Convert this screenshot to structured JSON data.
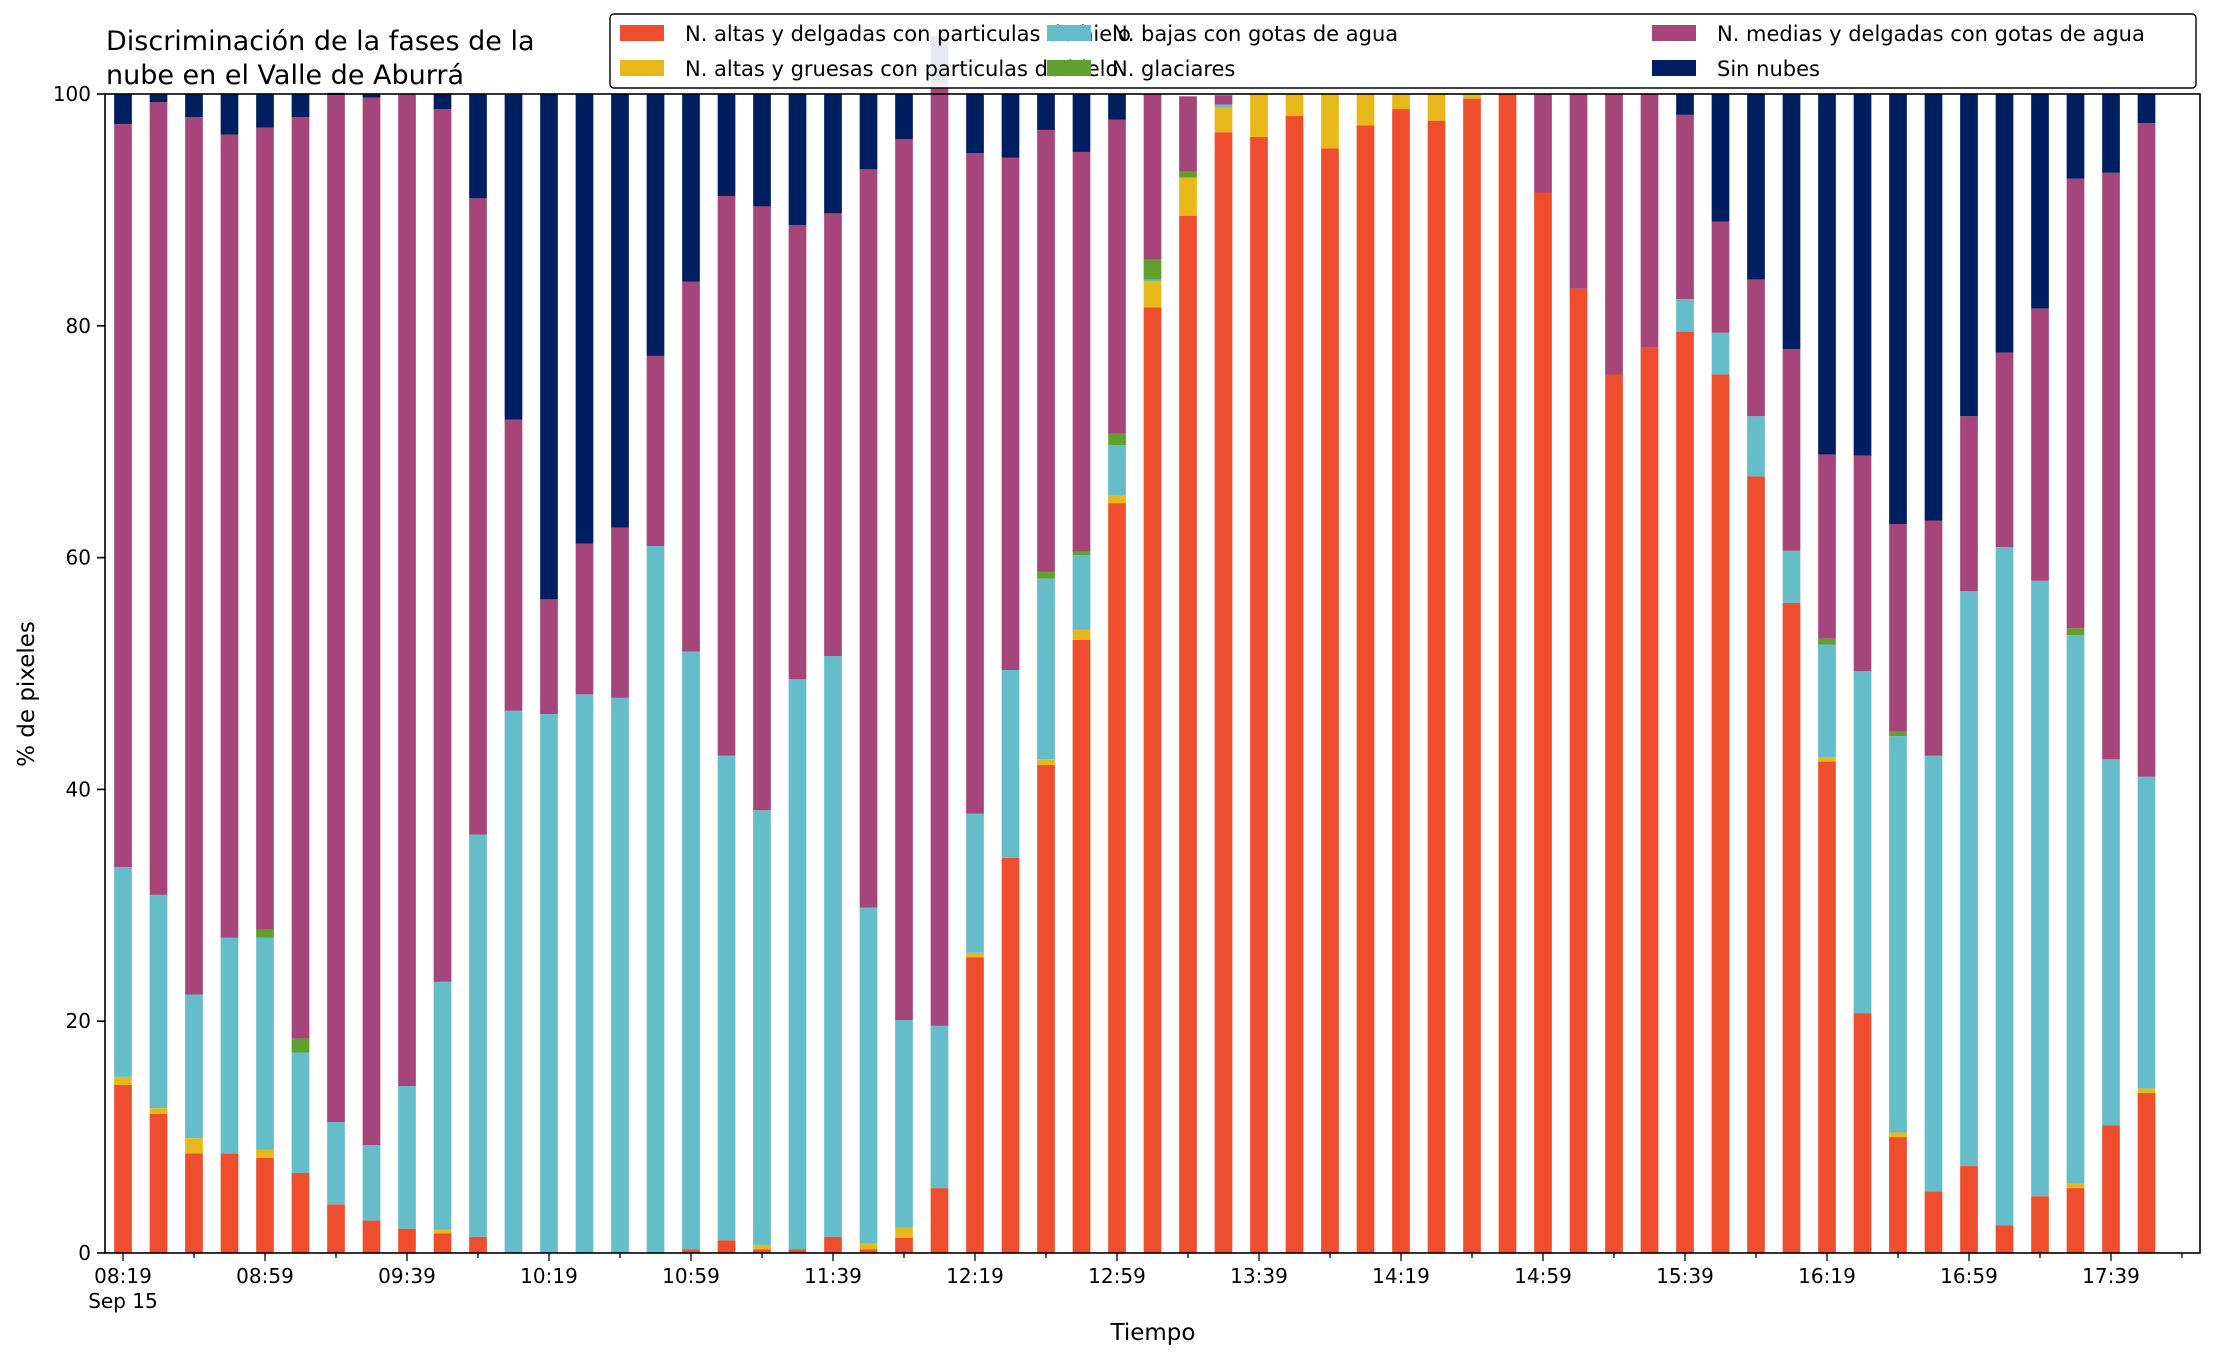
{
  "chart_data": {
    "type": "bar",
    "stacked": true,
    "title_lines": [
      "Discriminación de la fases de la",
      "nube en el Valle de Aburrá"
    ],
    "xlabel": "Tiempo",
    "ylabel": "% de pixeles",
    "ylim": [
      0,
      100
    ],
    "yticks": [
      0,
      20,
      40,
      60,
      80,
      100
    ],
    "xtick_labels": [
      "08:19",
      "08:59",
      "09:39",
      "10:19",
      "10:59",
      "11:39",
      "12:19",
      "12:59",
      "13:39",
      "14:19",
      "14:59",
      "15:39",
      "16:19",
      "16:59",
      "17:39"
    ],
    "xtick_every": 4,
    "date_label": "Sep 15",
    "grid": false,
    "legend_position": "top-right",
    "legend_columns": 3,
    "series": [
      {
        "name": "N. altas y delgadas con particulas de hielo",
        "color": "#EE4D2E",
        "values": [
          14.5,
          12,
          8.6,
          8.6,
          8.2,
          6.9,
          4.2,
          2.8,
          2.1,
          1.7,
          1.4,
          0,
          0,
          0,
          0,
          0,
          0.3,
          1.1,
          0.3,
          0.3,
          1.4,
          0.3,
          1.3,
          5.6,
          25.5,
          34.1,
          42.1,
          52.9,
          64.7,
          81.6,
          89.5,
          96.7,
          96.3,
          98.1,
          95.3,
          97.3,
          98.7,
          97.7,
          99.6,
          100,
          91.5,
          83.2,
          75.8,
          78.1,
          79.5,
          75.8,
          67,
          56.1,
          42.4,
          20.7,
          10,
          5.3,
          7.5,
          2.4,
          4.9,
          5.6,
          11,
          13.8
        ]
      },
      {
        "name": "N. altas y gruesas con particulas de hielo",
        "color": "#E8B719",
        "values": [
          0.7,
          0.5,
          1.3,
          0,
          0.7,
          0,
          0,
          0,
          0,
          0.3,
          0,
          0,
          0,
          0,
          0,
          0,
          0,
          0,
          0.4,
          0,
          0,
          0.5,
          0.9,
          0,
          0.4,
          0,
          0.5,
          0.9,
          0.7,
          2.2,
          3.3,
          2.1,
          3.7,
          1.9,
          4.7,
          2.7,
          1.3,
          2.3,
          0.4,
          0,
          0,
          0,
          0,
          0,
          0,
          0,
          0,
          0,
          0.4,
          0,
          0.4,
          0,
          0,
          0,
          0,
          0.4,
          0,
          0.4
        ]
      },
      {
        "name": "N. bajas con gotas de agua",
        "color": "#66BDCA",
        "values": [
          18.1,
          18.4,
          12.4,
          18.6,
          18.3,
          10.4,
          7.1,
          6.5,
          12.3,
          21.4,
          34.7,
          46.8,
          46.5,
          48.2,
          47.9,
          61,
          51.6,
          41.8,
          37.5,
          49.2,
          50.1,
          29,
          17.9,
          14,
          12,
          16.2,
          15.6,
          6.4,
          4.3,
          0.2,
          0,
          0.3,
          0,
          0,
          0,
          0,
          0,
          0,
          0,
          0,
          0,
          0,
          0,
          0,
          2.8,
          3.6,
          5.2,
          4.5,
          9.7,
          29.5,
          34.2,
          37.6,
          49.6,
          58.5,
          53.1,
          47.3,
          31.6,
          26.9
        ]
      },
      {
        "name": "N. glaciares",
        "color": "#5FA12C",
        "values": [
          0,
          0,
          0,
          0,
          0.7,
          1.2,
          0,
          0,
          0,
          0,
          0,
          0,
          0,
          0,
          0,
          0,
          0,
          0,
          0,
          0,
          0,
          0,
          0,
          0,
          0,
          0,
          0.6,
          0.3,
          1,
          1.7,
          0.5,
          0,
          0,
          0,
          0,
          0,
          0,
          0,
          0,
          0,
          0,
          0,
          0,
          0,
          0,
          0,
          0,
          0,
          0.5,
          0,
          0.4,
          0,
          0,
          0,
          0,
          0.6,
          0,
          0
        ]
      },
      {
        "name": "N. medias y delgadas con gotas de agua",
        "color": "#A5457A",
        "values": [
          64.1,
          68.4,
          75.7,
          69.3,
          69.2,
          79.5,
          88.6,
          90.4,
          85.6,
          75.3,
          54.9,
          25.1,
          9.9,
          13,
          14.7,
          16.4,
          31.9,
          48.3,
          52.1,
          39.2,
          38.2,
          63.7,
          76,
          81.4,
          57,
          44.2,
          38.1,
          34.5,
          27.1,
          14.3,
          6.5,
          0.8,
          0,
          0,
          0,
          0,
          0,
          0,
          0,
          0,
          8.5,
          16.8,
          24.2,
          21.9,
          15.9,
          9.6,
          11.8,
          17.4,
          15.9,
          18.6,
          17.9,
          20.3,
          15.1,
          16.8,
          23.5,
          38.8,
          50.6,
          56.4
        ]
      },
      {
        "name": "Sin nubes",
        "color": "#001F60",
        "values": [
          2.6,
          0.7,
          2,
          3.5,
          2.9,
          2,
          0.2,
          0.3,
          0,
          1.3,
          9,
          28.1,
          43.6,
          38.8,
          37.4,
          22.6,
          16.2,
          8.8,
          9.7,
          11.3,
          10.3,
          6.5,
          3.9,
          4,
          5.1,
          5.5,
          3.1,
          5,
          2.2,
          0,
          0,
          0,
          0,
          0,
          0,
          0,
          0,
          0,
          0,
          0,
          0,
          0,
          0,
          0,
          1.8,
          11,
          16,
          22,
          31.1,
          31.2,
          37.1,
          36.8,
          27.8,
          22.3,
          18.5,
          7.3,
          6.8,
          2.5
        ]
      }
    ]
  }
}
